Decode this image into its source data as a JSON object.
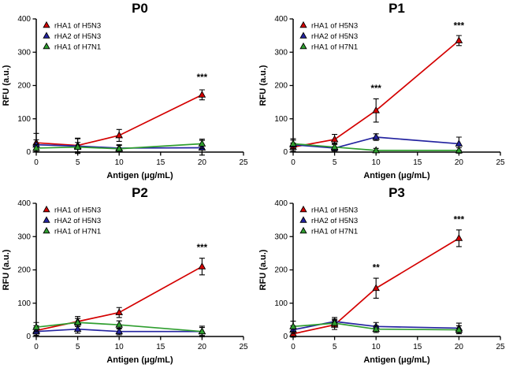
{
  "figure": {
    "background": "#ffffff",
    "marker_edge_color": "#000000",
    "error_bar_color": "#000000",
    "axis_color": "#000000"
  },
  "chart_data": [
    {
      "type": "line",
      "title": "P0",
      "xlabel": "Antigen (μg/mL)",
      "ylabel": "RFU (a.u.)",
      "xlim": [
        0,
        25
      ],
      "ylim": [
        0,
        400
      ],
      "xticks": [
        0,
        5,
        10,
        15,
        20,
        25
      ],
      "yticks": [
        0,
        100,
        200,
        300,
        400
      ],
      "grid": false,
      "legend_position": "top-left",
      "x": [
        0,
        5,
        10,
        20
      ],
      "series": [
        {
          "name": "rHA1 of H5N3",
          "color": "#d40000",
          "values": [
            28,
            20,
            50,
            172
          ],
          "errors": [
            28,
            22,
            18,
            15
          ]
        },
        {
          "name": "rHA2 of H5N3",
          "color": "#2323a0",
          "values": [
            22,
            18,
            12,
            13
          ],
          "errors": [
            15,
            22,
            10,
            22
          ]
        },
        {
          "name": "rHA1 of H7N1",
          "color": "#2f9e2f",
          "values": [
            12,
            15,
            10,
            25
          ],
          "errors": [
            10,
            14,
            10,
            14
          ]
        }
      ],
      "annotations": [
        {
          "x": 20,
          "y": 215,
          "text": "***"
        }
      ]
    },
    {
      "type": "line",
      "title": "P1",
      "xlabel": "Antigen (μg/mL)",
      "ylabel": "RFU (a.u.)",
      "xlim": [
        0,
        25
      ],
      "ylim": [
        0,
        400
      ],
      "xticks": [
        0,
        5,
        10,
        15,
        20,
        25
      ],
      "yticks": [
        0,
        100,
        200,
        300,
        400
      ],
      "grid": false,
      "legend_position": "top-left",
      "x": [
        0,
        5,
        10,
        20
      ],
      "series": [
        {
          "name": "rHA1 of H5N3",
          "color": "#d40000",
          "values": [
            15,
            38,
            125,
            335
          ],
          "errors": [
            12,
            15,
            35,
            15
          ]
        },
        {
          "name": "rHA2 of H5N3",
          "color": "#2323a0",
          "values": [
            22,
            12,
            45,
            25
          ],
          "errors": [
            14,
            12,
            10,
            20
          ]
        },
        {
          "name": "rHA1 of H7N1",
          "color": "#2f9e2f",
          "values": [
            25,
            15,
            5,
            5
          ],
          "errors": [
            15,
            12,
            6,
            8
          ]
        }
      ],
      "annotations": [
        {
          "x": 10,
          "y": 182,
          "text": "***"
        },
        {
          "x": 20,
          "y": 370,
          "text": "***"
        }
      ]
    },
    {
      "type": "line",
      "title": "P2",
      "xlabel": "Antigen (μg/mL)",
      "ylabel": "RFU (a.u.)",
      "xlim": [
        0,
        25
      ],
      "ylim": [
        0,
        400
      ],
      "xticks": [
        0,
        5,
        10,
        15,
        20,
        25
      ],
      "yticks": [
        0,
        100,
        200,
        300,
        400
      ],
      "grid": false,
      "legend_position": "top-left",
      "x": [
        0,
        5,
        10,
        20
      ],
      "series": [
        {
          "name": "rHA1 of H5N3",
          "color": "#d40000",
          "values": [
            18,
            45,
            72,
            210
          ],
          "errors": [
            14,
            15,
            15,
            25
          ]
        },
        {
          "name": "rHA2 of H5N3",
          "color": "#2323a0",
          "values": [
            15,
            22,
            15,
            15
          ],
          "errors": [
            12,
            12,
            10,
            16
          ]
        },
        {
          "name": "rHA1 of H7N1",
          "color": "#2f9e2f",
          "values": [
            28,
            42,
            35,
            15
          ],
          "errors": [
            14,
            12,
            12,
            12
          ]
        }
      ],
      "annotations": [
        {
          "x": 20,
          "y": 258,
          "text": "***"
        }
      ]
    },
    {
      "type": "line",
      "title": "P3",
      "xlabel": "Antigen (μg/mL)",
      "ylabel": "RFU (a.u.)",
      "xlim": [
        0,
        25
      ],
      "ylim": [
        0,
        400
      ],
      "xticks": [
        0,
        5,
        10,
        15,
        20,
        25
      ],
      "yticks": [
        0,
        100,
        200,
        300,
        400
      ],
      "grid": false,
      "legend_position": "top-left",
      "x": [
        0,
        5,
        10,
        20
      ],
      "series": [
        {
          "name": "rHA1 of H5N3",
          "color": "#d40000",
          "values": [
            8,
            35,
            145,
            295
          ],
          "errors": [
            10,
            14,
            30,
            25
          ]
        },
        {
          "name": "rHA2 of H5N3",
          "color": "#2323a0",
          "values": [
            20,
            45,
            30,
            25
          ],
          "errors": [
            12,
            12,
            12,
            15
          ]
        },
        {
          "name": "rHA1 of H7N1",
          "color": "#2f9e2f",
          "values": [
            30,
            40,
            22,
            20
          ],
          "errors": [
            16,
            12,
            10,
            12
          ]
        }
      ],
      "annotations": [
        {
          "x": 10,
          "y": 198,
          "text": "**"
        },
        {
          "x": 20,
          "y": 342,
          "text": "***"
        }
      ]
    }
  ]
}
